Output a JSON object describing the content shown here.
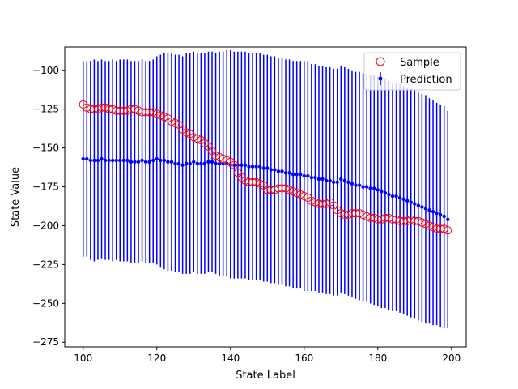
{
  "chart_data": {
    "type": "scatter",
    "title": "",
    "xlabel": "State Label",
    "ylabel": "State Value",
    "xlim": [
      95,
      204
    ],
    "ylim": [
      -278,
      -85
    ],
    "xticks": [
      100,
      120,
      140,
      160,
      180,
      200
    ],
    "yticks": [
      -100,
      -125,
      -150,
      -175,
      -200,
      -225,
      -250,
      -275
    ],
    "xtick_labels": [
      "100",
      "120",
      "140",
      "160",
      "180",
      "200"
    ],
    "ytick_labels": [
      "−100",
      "−125",
      "−150",
      "−175",
      "−200",
      "−225",
      "−250",
      "−275"
    ],
    "grid": false,
    "legend_position": "top-right",
    "x": [
      100,
      101,
      102,
      103,
      104,
      105,
      106,
      107,
      108,
      109,
      110,
      111,
      112,
      113,
      114,
      115,
      116,
      117,
      118,
      119,
      120,
      121,
      122,
      123,
      124,
      125,
      126,
      127,
      128,
      129,
      130,
      131,
      132,
      133,
      134,
      135,
      136,
      137,
      138,
      139,
      140,
      141,
      142,
      143,
      144,
      145,
      146,
      147,
      148,
      149,
      150,
      151,
      152,
      153,
      154,
      155,
      156,
      157,
      158,
      159,
      160,
      161,
      162,
      163,
      164,
      165,
      166,
      167,
      168,
      169,
      170,
      171,
      172,
      173,
      174,
      175,
      176,
      177,
      178,
      179,
      180,
      181,
      182,
      183,
      184,
      185,
      186,
      187,
      188,
      189,
      190,
      191,
      192,
      193,
      194,
      195,
      196,
      197,
      198,
      199
    ],
    "series": [
      {
        "name": "Sample",
        "marker": "open-circle",
        "color": "#ff0000",
        "values": [
          -122,
          -124,
          -125,
          -125,
          -125,
          -124,
          -124,
          -125,
          -125,
          -126,
          -126,
          -126,
          -126,
          -125,
          -125,
          -126,
          -127,
          -127,
          -127,
          -127,
          -128,
          -129,
          -130,
          -131,
          -133,
          -134,
          -135,
          -138,
          -140,
          -141,
          -143,
          -144,
          -145,
          -147,
          -149,
          -152,
          -155,
          -156,
          -157,
          -158,
          -159,
          -161,
          -166,
          -169,
          -171,
          -172,
          -172,
          -172,
          -173,
          -174,
          -177,
          -177,
          -177,
          -176,
          -176,
          -176,
          -177,
          -178,
          -179,
          -180,
          -181,
          -182,
          -184,
          -185,
          -186,
          -186,
          -186,
          -185,
          -187,
          -190,
          -192,
          -193,
          -193,
          -192,
          -192,
          -192,
          -193,
          -194,
          -195,
          -195,
          -196,
          -196,
          -195,
          -195,
          -196,
          -196,
          -197,
          -197,
          -197,
          -196,
          -197,
          -197,
          -198,
          -199,
          -200,
          -201,
          -202,
          -202,
          -202,
          -203
        ]
      },
      {
        "name": "Prediction",
        "marker": "point-errorbar",
        "color": "#0000ff",
        "values": [
          -157,
          -157,
          -158,
          -158,
          -158,
          -157,
          -158,
          -158,
          -158,
          -158,
          -158,
          -158,
          -158,
          -159,
          -159,
          -159,
          -158,
          -159,
          -159,
          -158,
          -157,
          -158,
          -158,
          -159,
          -159,
          -160,
          -160,
          -161,
          -160,
          -160,
          -159,
          -160,
          -160,
          -160,
          -159,
          -159,
          -160,
          -160,
          -160,
          -160,
          -161,
          -161,
          -161,
          -161,
          -161,
          -162,
          -162,
          -162,
          -162,
          -163,
          -163,
          -164,
          -164,
          -165,
          -165,
          -166,
          -166,
          -167,
          -167,
          -167,
          -168,
          -168,
          -169,
          -169,
          -170,
          -170,
          -171,
          -171,
          -172,
          -172,
          -170,
          -171,
          -172,
          -173,
          -174,
          -174,
          -175,
          -175,
          -176,
          -176,
          -177,
          -178,
          -179,
          -180,
          -181,
          -181,
          -182,
          -183,
          -184,
          -185,
          -186,
          -187,
          -188,
          -189,
          -190,
          -191,
          -192,
          -193,
          -194,
          -196
        ],
        "lower": [
          -220,
          -220,
          -222,
          -223,
          -222,
          -221,
          -222,
          -222,
          -223,
          -222,
          -223,
          -223,
          -223,
          -224,
          -224,
          -224,
          -223,
          -224,
          -224,
          -224,
          -225,
          -227,
          -228,
          -229,
          -229,
          -230,
          -230,
          -231,
          -231,
          -231,
          -230,
          -231,
          -231,
          -231,
          -230,
          -230,
          -231,
          -232,
          -232,
          -233,
          -234,
          -234,
          -234,
          -234,
          -234,
          -235,
          -235,
          -235,
          -235,
          -236,
          -236,
          -237,
          -237,
          -238,
          -238,
          -239,
          -239,
          -240,
          -240,
          -240,
          -242,
          -242,
          -242,
          -242,
          -243,
          -243,
          -244,
          -244,
          -245,
          -245,
          -243,
          -244,
          -245,
          -246,
          -247,
          -248,
          -249,
          -249,
          -250,
          -251,
          -252,
          -253,
          -253,
          -254,
          -255,
          -255,
          -256,
          -257,
          -258,
          -259,
          -260,
          -261,
          -262,
          -263,
          -263,
          -264,
          -264,
          -265,
          -266,
          -266
        ],
        "upper": [
          -94,
          -94,
          -94,
          -93,
          -94,
          -93,
          -94,
          -94,
          -93,
          -94,
          -93,
          -93,
          -93,
          -94,
          -94,
          -94,
          -93,
          -94,
          -94,
          -93,
          -91,
          -90,
          -89,
          -89,
          -89,
          -90,
          -90,
          -91,
          -89,
          -89,
          -88,
          -89,
          -89,
          -89,
          -88,
          -88,
          -89,
          -88,
          -88,
          -87,
          -87,
          -88,
          -88,
          -88,
          -88,
          -89,
          -89,
          -89,
          -89,
          -90,
          -90,
          -91,
          -91,
          -92,
          -92,
          -93,
          -93,
          -94,
          -94,
          -94,
          -94,
          -94,
          -96,
          -96,
          -97,
          -97,
          -98,
          -98,
          -99,
          -99,
          -97,
          -98,
          -99,
          -100,
          -101,
          -101,
          -102,
          -102,
          -103,
          -103,
          -104,
          -105,
          -106,
          -107,
          -108,
          -108,
          -109,
          -110,
          -111,
          -112,
          -113,
          -114,
          -115,
          -116,
          -118,
          -119,
          -121,
          -122,
          -123,
          -126
        ]
      }
    ]
  }
}
